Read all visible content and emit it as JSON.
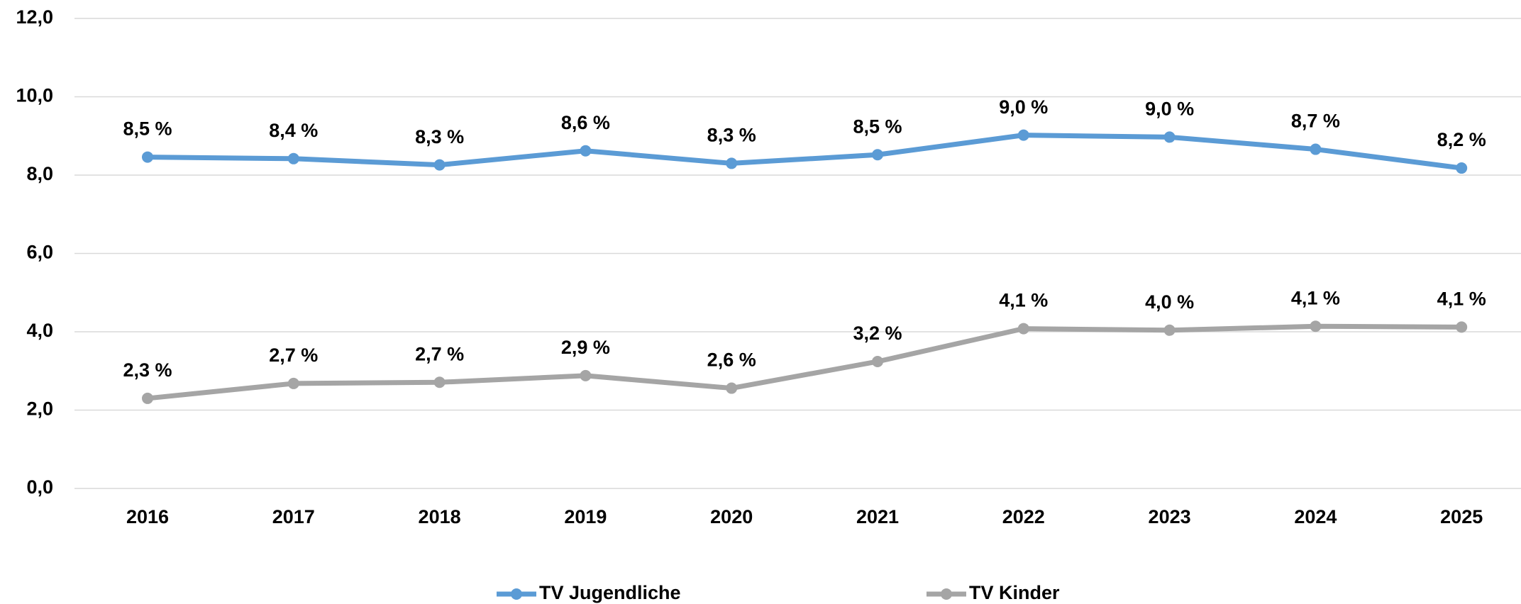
{
  "chart_data": {
    "type": "line",
    "categories": [
      "2016",
      "2017",
      "2018",
      "2019",
      "2020",
      "2021",
      "2022",
      "2023",
      "2024",
      "2025"
    ],
    "series": [
      {
        "name": "TV Jugendliche",
        "color": "#5b9bd5",
        "values": [
          8.46,
          8.42,
          8.26,
          8.62,
          8.3,
          8.52,
          9.02,
          8.97,
          8.66,
          8.18
        ],
        "value_labels": [
          "8,5 %",
          "8,4 %",
          "8,3 %",
          "8,6 %",
          "8,3 %",
          "8,5 %",
          "9,0 %",
          "9,0 %",
          "8,7 %",
          "8,2 %"
        ]
      },
      {
        "name": "TV Kinder",
        "color": "#a5a5a5",
        "values": [
          2.3,
          2.68,
          2.71,
          2.88,
          2.56,
          3.24,
          4.08,
          4.04,
          4.14,
          4.12
        ],
        "value_labels": [
          "2,3 %",
          "2,7 %",
          "2,7 %",
          "2,9 %",
          "2,6 %",
          "3,2 %",
          "4,1 %",
          "4,0 %",
          "4,1 %",
          "4,1 %"
        ]
      }
    ],
    "ylim": [
      0,
      12
    ],
    "yticks": [
      {
        "value": 0,
        "label": "0,0"
      },
      {
        "value": 2,
        "label": "2,0"
      },
      {
        "value": 4,
        "label": "4,0"
      },
      {
        "value": 6,
        "label": "6,0"
      },
      {
        "value": 8,
        "label": "8,0"
      },
      {
        "value": 10,
        "label": "10,0"
      },
      {
        "value": 12,
        "label": "12,0"
      }
    ],
    "grid": true,
    "legend": "bottom"
  }
}
